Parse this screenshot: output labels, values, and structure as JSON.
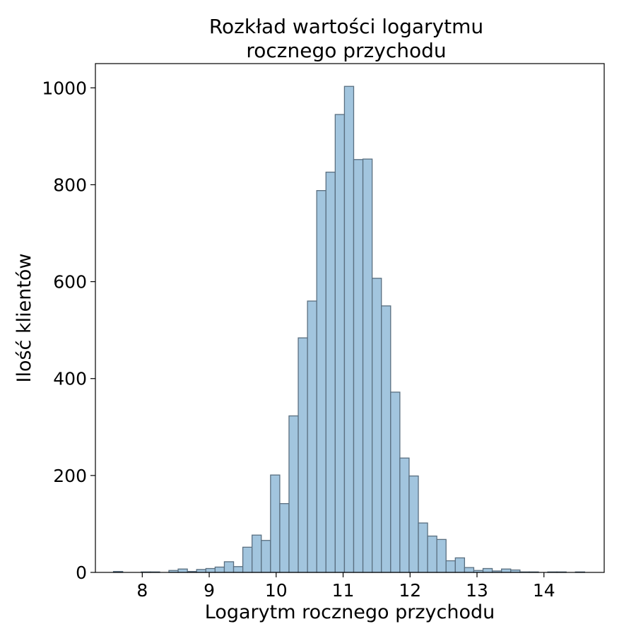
{
  "chart_data": {
    "type": "bar",
    "title": "Rozkład wartości logarytmu\nrocznego przychodu",
    "xlabel": "Logarytm rocznego przychodu",
    "ylabel": "Ilość klientów",
    "xlim": [
      7.3,
      14.9
    ],
    "ylim": [
      0,
      1050
    ],
    "x_ticks": [
      8,
      9,
      10,
      11,
      12,
      13,
      14
    ],
    "y_ticks": [
      0,
      200,
      400,
      600,
      800,
      1000
    ],
    "grid": false,
    "bin_start": 7.57,
    "bin_width": 0.138,
    "values": [
      2,
      0,
      0,
      1,
      1,
      0,
      4,
      7,
      2,
      6,
      8,
      11,
      22,
      12,
      52,
      77,
      66,
      201,
      142,
      323,
      484,
      560,
      788,
      826,
      945,
      1003,
      852,
      853,
      607,
      550,
      372,
      236,
      199,
      102,
      75,
      68,
      24,
      30,
      10,
      4,
      8,
      3,
      7,
      5,
      1,
      1,
      0,
      1,
      1,
      0,
      1
    ],
    "colors": {
      "bar_fill": "#a2c5de",
      "bar_edge": "#5a6f80"
    }
  }
}
